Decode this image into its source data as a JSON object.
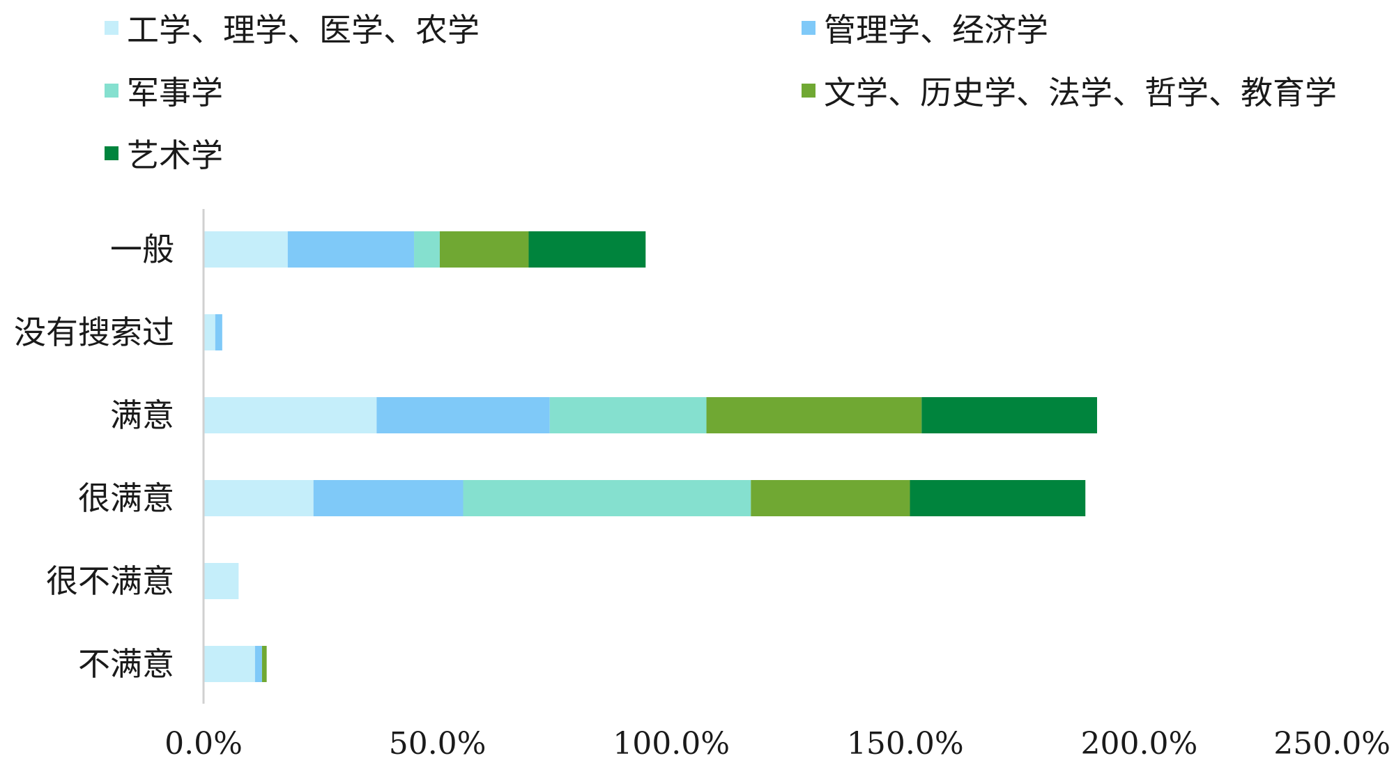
{
  "chart_data": {
    "type": "bar",
    "orientation": "horizontal",
    "stacked": true,
    "categories": [
      "一般",
      "没有搜索过",
      "满意",
      "很满意",
      "很不满意",
      "不满意"
    ],
    "series": [
      {
        "name": "工学、理学、医学、农学",
        "color": "#c5eefa",
        "values": [
          18.0,
          2.5,
          37.0,
          23.5,
          7.5,
          11.0
        ]
      },
      {
        "name": "管理学、经济学",
        "color": "#7fc9f8",
        "values": [
          27.0,
          1.5,
          37.0,
          32.0,
          0,
          1.5
        ]
      },
      {
        "name": "军事学",
        "color": "#85e0cf",
        "values": [
          5.5,
          0,
          33.5,
          61.5,
          0,
          0
        ]
      },
      {
        "name": "文学、历史学、法学、哲学、教育学",
        "color": "#70a833",
        "values": [
          19.0,
          0,
          46.0,
          34.0,
          0,
          1.0
        ]
      },
      {
        "name": "艺术学",
        "color": "#00843d",
        "values": [
          25.0,
          0,
          37.5,
          37.5,
          0,
          0
        ]
      }
    ],
    "xlim": [
      0,
      250
    ],
    "xticks": [
      "0.0%",
      "50.0%",
      "100.0%",
      "150.0%",
      "200.0%",
      "250.0%"
    ],
    "grid": false,
    "legend_position": "top"
  }
}
